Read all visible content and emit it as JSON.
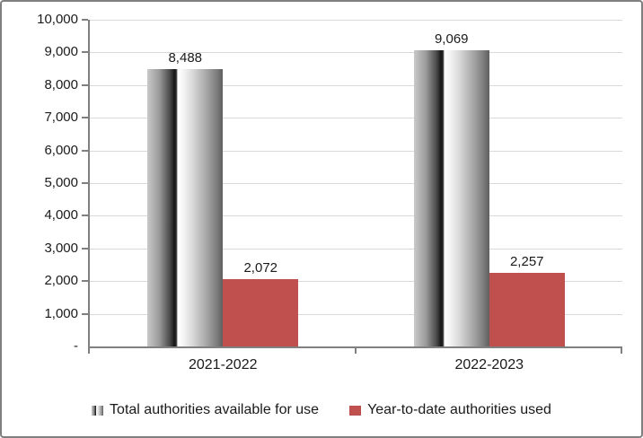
{
  "chart_data": {
    "type": "bar",
    "categories": [
      "2021-2022",
      "2022-2023"
    ],
    "series": [
      {
        "name": "Total authorities available for use",
        "values": [
          8488,
          9069
        ],
        "value_labels": [
          "8,488",
          "9,069"
        ],
        "style": "gray-gradient",
        "swatch_icon": "gradient-bar-swatch-icon"
      },
      {
        "name": "Year-to-date authorities used",
        "values": [
          2072,
          2257
        ],
        "value_labels": [
          "2,072",
          "2,257"
        ],
        "color": "#C0504D",
        "swatch_icon": "red-square-swatch-icon"
      }
    ],
    "title": "",
    "xlabel": "",
    "ylabel": "",
    "ylim": [
      0,
      10000
    ],
    "y_tick_interval": 1000,
    "y_tick_labels": [
      "-",
      "1,000",
      "2,000",
      "3,000",
      "4,000",
      "5,000",
      "6,000",
      "7,000",
      "8,000",
      "9,000",
      "10,000"
    ],
    "grid": true,
    "legend_position": "bottom"
  },
  "colors": {
    "series_red": "#C0504D",
    "gridline": "#D9D9D9",
    "axis": "#808080",
    "frame_border": "#7F7F7F",
    "text": "#1A1A1A",
    "background": "#FFFFFF"
  }
}
